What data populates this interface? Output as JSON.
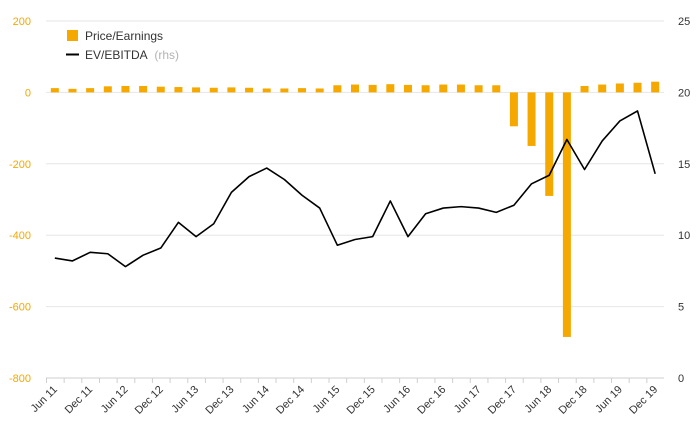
{
  "chart_data": {
    "type": "bar+line",
    "title": "",
    "xlabel": "",
    "ylabel_left": "",
    "ylabel_right": "",
    "ylim_left": [
      -800,
      200
    ],
    "ylim_right": [
      0,
      25
    ],
    "yticks_left": [
      "200",
      "0",
      "-200",
      "-400",
      "-600",
      "-800"
    ],
    "yticks_right": [
      "25",
      "20",
      "15",
      "10",
      "5",
      "0"
    ],
    "grid": "horizontal",
    "legend_placement": "top-left",
    "x_labels": [
      "Jun 11",
      "Dec 11",
      "Jun 12",
      "Dec 12",
      "Jun 13",
      "Dec 13",
      "Jun 14",
      "Dec 14",
      "Jun 15",
      "Dec 15",
      "Jun 16",
      "Dec 16",
      "Jun 17",
      "Dec 17",
      "Jun 18",
      "Dec 18",
      "Jun 19",
      "Dec 19"
    ],
    "series": [
      {
        "name": "Price/Earnings",
        "axis": "left",
        "kind": "bar",
        "color": "#f5a800",
        "values": [
          12,
          10,
          12,
          17,
          18,
          18,
          16,
          15,
          14,
          13,
          14,
          13,
          11,
          11,
          12,
          11,
          20,
          22,
          21,
          23,
          21,
          20,
          22,
          22,
          20,
          20,
          -95,
          -150,
          -290,
          -685,
          18,
          22,
          25,
          27,
          30
        ]
      },
      {
        "name": "EV/EBITDA",
        "legend_suffix": "(rhs)",
        "axis": "right",
        "kind": "line",
        "color": "#000000",
        "values": [
          8.4,
          8.2,
          8.8,
          8.7,
          7.8,
          8.6,
          9.1,
          10.9,
          9.9,
          10.8,
          13.0,
          14.1,
          14.7,
          13.9,
          12.8,
          11.9,
          9.3,
          9.7,
          9.9,
          12.4,
          9.9,
          11.5,
          11.9,
          12.0,
          11.9,
          11.6,
          12.1,
          13.6,
          14.2,
          16.7,
          14.6,
          16.6,
          18.0,
          18.7,
          14.3
        ]
      }
    ]
  }
}
